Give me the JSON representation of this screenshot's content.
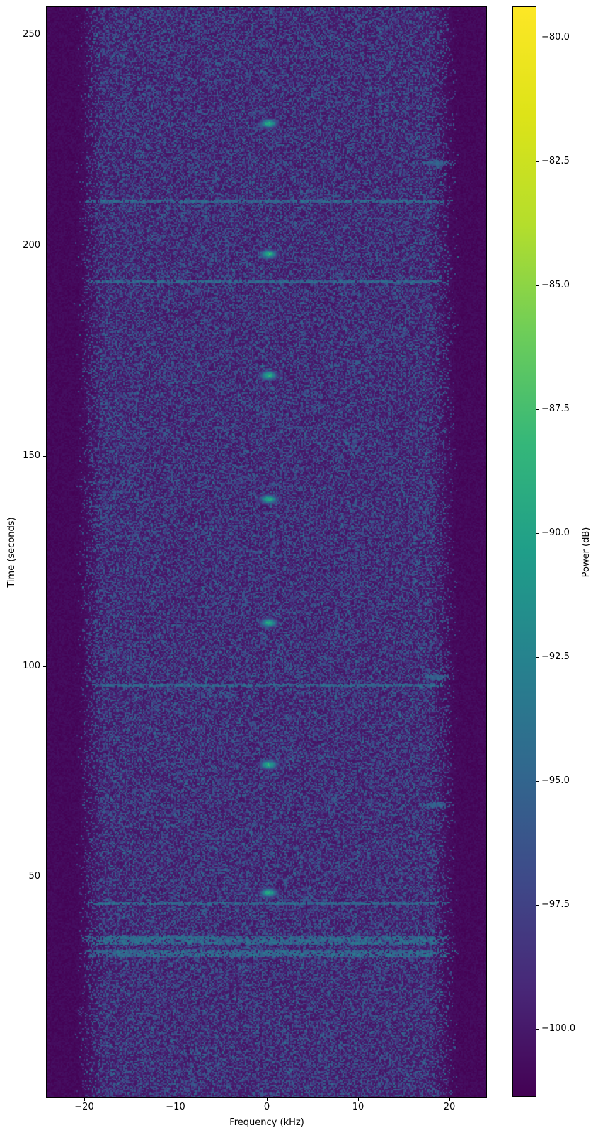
{
  "figure": {
    "background": "#ffffff"
  },
  "axes": {
    "xlabel": "Frequency (kHz)",
    "ylabel": "Time (seconds)",
    "x_tick_labels": [
      "−20",
      "−10",
      "0",
      "10",
      "20"
    ],
    "x_tick_values": [
      -20,
      -10,
      0,
      10,
      20
    ],
    "y_tick_labels": [
      "50",
      "100",
      "150",
      "200",
      "250"
    ],
    "y_tick_values": [
      50,
      100,
      150,
      200,
      250
    ]
  },
  "colorbar": {
    "label": "Power (dB)",
    "tick_labels": [
      "−80.0",
      "−82.5",
      "−85.0",
      "−87.5",
      "−90.0",
      "−92.5",
      "−95.0",
      "−97.5",
      "−100.0"
    ],
    "tick_values": [
      -80.0,
      -82.5,
      -85.0,
      -87.5,
      -90.0,
      -92.5,
      -95.0,
      -97.5,
      -100.0
    ],
    "colormap": "viridis"
  },
  "chart_data": {
    "type": "heatmap",
    "subtype": "spectrogram",
    "title": "",
    "xlabel": "Frequency (kHz)",
    "ylabel": "Time (seconds)",
    "colorbar_label": "Power (dB)",
    "xlim": [
      -24.1,
      24.0
    ],
    "ylim": [
      -2.4,
      256.6
    ],
    "clim": [
      -101.35,
      -79.39
    ],
    "colormap": "viridis",
    "grid": false,
    "noise": {
      "floor_db": -101.0,
      "band_full_khz": 17.3,
      "band_zero_khz": 21.2,
      "speckle_density": 0.55,
      "speckle_db_range": [
        -99.3,
        -95.1
      ],
      "bright_speckle_chance": 0.02,
      "bright_speckle_db": [
        -94.9,
        -93.8
      ]
    },
    "features": {
      "center_pulses": {
        "freq_khz": 0.2,
        "freq_sigma_khz": 0.6,
        "time_sigma_s": 0.7,
        "peak_db": -88.6,
        "times_s": [
          228.9,
          197.9,
          169.1,
          139.7,
          110.3,
          76.6,
          46.2
        ]
      },
      "broadband_lines": {
        "db_range": [
          -96.2,
          -93.4
        ],
        "half_width_s": 0.34,
        "times_s": [
          210.5,
          191.4,
          95.5,
          43.6
        ]
      },
      "broadband_bursts": {
        "db_range": [
          -96.0,
          -93.0
        ],
        "spans_s": [
          [
            33.8,
            36.0
          ],
          [
            30.8,
            32.6
          ]
        ]
      },
      "side_streaks": {
        "freq_khz": 18.5,
        "freq_sigma_khz": 0.9,
        "time_sigma_s": 0.5,
        "db_range": [
          -96.8,
          -94.4
        ],
        "times_s": [
          219.5,
          97.4,
          67.1
        ]
      }
    }
  }
}
